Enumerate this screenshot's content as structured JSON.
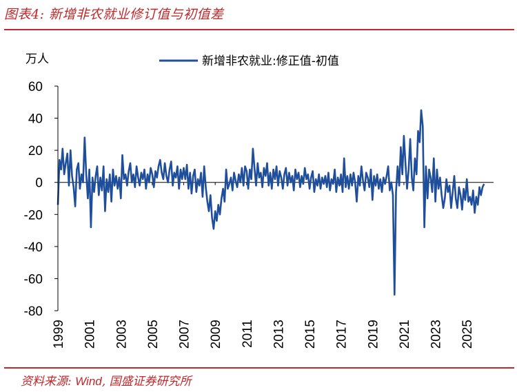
{
  "figure": {
    "title": "图表4: 新增非农就业修订值与初值差",
    "source_prefix": "资料来源: ",
    "source_wind": "Wind",
    "source_suffix": ", 国盛证券研究所"
  },
  "colors": {
    "accent": "#c0282b",
    "series": "#1f4e9a",
    "axis": "#000000"
  },
  "chart_data": {
    "type": "line",
    "title": "",
    "ylabel": "万人",
    "xlabel": "",
    "ylim": [
      -80,
      60
    ],
    "xlim": [
      1999.0,
      2026.7
    ],
    "yticks": [
      60,
      40,
      20,
      0,
      -20,
      -40,
      -60,
      -80
    ],
    "xticks": [
      1999,
      2001,
      2003,
      2005,
      2007,
      2009,
      2011,
      2013,
      2015,
      2017,
      2019,
      2021,
      2023,
      2025
    ],
    "grid": false,
    "legend_position": "top-center",
    "series": [
      {
        "name": "新增非农就业:修正值-初值",
        "points": [
          [
            1999.0,
            -14
          ],
          [
            1999.1,
            14
          ],
          [
            1999.2,
            8
          ],
          [
            1999.3,
            21
          ],
          [
            1999.4,
            5
          ],
          [
            1999.5,
            12
          ],
          [
            1999.6,
            18
          ],
          [
            1999.7,
            -2
          ],
          [
            1999.8,
            20
          ],
          [
            1999.9,
            4
          ],
          [
            2000.0,
            -3
          ],
          [
            2000.1,
            -15
          ],
          [
            2000.2,
            8
          ],
          [
            2000.3,
            12
          ],
          [
            2000.4,
            -4
          ],
          [
            2000.5,
            5
          ],
          [
            2000.6,
            0
          ],
          [
            2000.7,
            28
          ],
          [
            2000.8,
            5
          ],
          [
            2000.9,
            -10
          ],
          [
            2001.0,
            8
          ],
          [
            2001.1,
            -28
          ],
          [
            2001.2,
            3
          ],
          [
            2001.3,
            -6
          ],
          [
            2001.4,
            4
          ],
          [
            2001.5,
            10
          ],
          [
            2001.6,
            -8
          ],
          [
            2001.7,
            3
          ],
          [
            2001.8,
            -5
          ],
          [
            2001.9,
            10
          ],
          [
            2002.0,
            -18
          ],
          [
            2002.1,
            2
          ],
          [
            2002.2,
            -6
          ],
          [
            2002.3,
            5
          ],
          [
            2002.4,
            -12
          ],
          [
            2002.5,
            8
          ],
          [
            2002.6,
            -2
          ],
          [
            2002.7,
            4
          ],
          [
            2002.8,
            -4
          ],
          [
            2002.9,
            3
          ],
          [
            2003.0,
            -10
          ],
          [
            2003.1,
            17
          ],
          [
            2003.2,
            2
          ],
          [
            2003.3,
            5
          ],
          [
            2003.4,
            -2
          ],
          [
            2003.5,
            7
          ],
          [
            2003.6,
            12
          ],
          [
            2003.7,
            0
          ],
          [
            2003.8,
            5
          ],
          [
            2003.9,
            -3
          ],
          [
            2004.0,
            10
          ],
          [
            2004.1,
            3
          ],
          [
            2004.2,
            -2
          ],
          [
            2004.3,
            6
          ],
          [
            2004.4,
            2
          ],
          [
            2004.5,
            8
          ],
          [
            2004.6,
            -4
          ],
          [
            2004.7,
            5
          ],
          [
            2004.8,
            0
          ],
          [
            2004.9,
            9
          ],
          [
            2005.0,
            5
          ],
          [
            2005.1,
            -3
          ],
          [
            2005.2,
            7
          ],
          [
            2005.3,
            3
          ],
          [
            2005.4,
            10
          ],
          [
            2005.5,
            14
          ],
          [
            2005.6,
            6
          ],
          [
            2005.7,
            2
          ],
          [
            2005.8,
            12
          ],
          [
            2005.9,
            4
          ],
          [
            2006.0,
            0
          ],
          [
            2006.1,
            8
          ],
          [
            2006.2,
            13
          ],
          [
            2006.3,
            -2
          ],
          [
            2006.4,
            6
          ],
          [
            2006.5,
            3
          ],
          [
            2006.6,
            10
          ],
          [
            2006.7,
            -4
          ],
          [
            2006.8,
            8
          ],
          [
            2006.9,
            2
          ],
          [
            2007.0,
            9
          ],
          [
            2007.1,
            2
          ],
          [
            2007.2,
            11
          ],
          [
            2007.3,
            -4
          ],
          [
            2007.4,
            6
          ],
          [
            2007.5,
            -7
          ],
          [
            2007.6,
            4
          ],
          [
            2007.7,
            8
          ],
          [
            2007.8,
            -6
          ],
          [
            2007.9,
            2
          ],
          [
            2008.0,
            -2
          ],
          [
            2008.1,
            6
          ],
          [
            2008.2,
            -9
          ],
          [
            2008.3,
            10
          ],
          [
            2008.4,
            -3
          ],
          [
            2008.5,
            -12
          ],
          [
            2008.6,
            -18
          ],
          [
            2008.7,
            -8
          ],
          [
            2008.8,
            -22
          ],
          [
            2008.9,
            -29
          ],
          [
            2009.0,
            -18
          ],
          [
            2009.1,
            -24
          ],
          [
            2009.2,
            -14
          ],
          [
            2009.3,
            -20
          ],
          [
            2009.4,
            -10
          ],
          [
            2009.5,
            -4
          ],
          [
            2009.6,
            -12
          ],
          [
            2009.7,
            8
          ],
          [
            2009.8,
            -4
          ],
          [
            2009.9,
            -1
          ],
          [
            2010.0,
            3
          ],
          [
            2010.1,
            -5
          ],
          [
            2010.2,
            6
          ],
          [
            2010.3,
            1
          ],
          [
            2010.4,
            -3
          ],
          [
            2010.5,
            5
          ],
          [
            2010.6,
            0
          ],
          [
            2010.7,
            9
          ],
          [
            2010.8,
            -2
          ],
          [
            2010.9,
            10
          ],
          [
            2011.0,
            7
          ],
          [
            2011.1,
            -4
          ],
          [
            2011.2,
            8
          ],
          [
            2011.3,
            2
          ],
          [
            2011.4,
            21
          ],
          [
            2011.5,
            9
          ],
          [
            2011.6,
            -2
          ],
          [
            2011.7,
            12
          ],
          [
            2011.8,
            3
          ],
          [
            2011.9,
            6
          ],
          [
            2012.0,
            -3
          ],
          [
            2012.1,
            9
          ],
          [
            2012.2,
            4
          ],
          [
            2012.3,
            12
          ],
          [
            2012.4,
            -2
          ],
          [
            2012.5,
            6
          ],
          [
            2012.6,
            -4
          ],
          [
            2012.7,
            8
          ],
          [
            2012.8,
            2
          ],
          [
            2012.9,
            10
          ],
          [
            2013.0,
            -2
          ],
          [
            2013.1,
            7
          ],
          [
            2013.2,
            3
          ],
          [
            2013.3,
            -4
          ],
          [
            2013.4,
            5
          ],
          [
            2013.5,
            9
          ],
          [
            2013.6,
            -2
          ],
          [
            2013.7,
            6
          ],
          [
            2013.8,
            0
          ],
          [
            2013.9,
            4
          ],
          [
            2014.0,
            -5
          ],
          [
            2014.1,
            8
          ],
          [
            2014.2,
            2
          ],
          [
            2014.3,
            6
          ],
          [
            2014.4,
            -3
          ],
          [
            2014.5,
            4
          ],
          [
            2014.6,
            -1
          ],
          [
            2014.7,
            9
          ],
          [
            2014.8,
            2
          ],
          [
            2014.9,
            5
          ],
          [
            2015.0,
            -4
          ],
          [
            2015.1,
            3
          ],
          [
            2015.2,
            7
          ],
          [
            2015.3,
            -6
          ],
          [
            2015.4,
            2
          ],
          [
            2015.5,
            -2
          ],
          [
            2015.6,
            5
          ],
          [
            2015.7,
            -4
          ],
          [
            2015.8,
            3
          ],
          [
            2015.9,
            -1
          ],
          [
            2016.0,
            4
          ],
          [
            2016.1,
            -3
          ],
          [
            2016.2,
            6
          ],
          [
            2016.3,
            -5
          ],
          [
            2016.4,
            2
          ],
          [
            2016.5,
            -1
          ],
          [
            2016.6,
            8
          ],
          [
            2016.7,
            -6
          ],
          [
            2016.8,
            3
          ],
          [
            2016.9,
            -2
          ],
          [
            2017.0,
            5
          ],
          [
            2017.1,
            -6
          ],
          [
            2017.2,
            15
          ],
          [
            2017.3,
            -3
          ],
          [
            2017.4,
            4
          ],
          [
            2017.5,
            -4
          ],
          [
            2017.6,
            5
          ],
          [
            2017.7,
            -2
          ],
          [
            2017.8,
            6
          ],
          [
            2017.9,
            0
          ],
          [
            2018.0,
            -12
          ],
          [
            2018.1,
            4
          ],
          [
            2018.2,
            -2
          ],
          [
            2018.3,
            10
          ],
          [
            2018.4,
            1
          ],
          [
            2018.5,
            -5
          ],
          [
            2018.6,
            6
          ],
          [
            2018.7,
            3
          ],
          [
            2018.8,
            -3
          ],
          [
            2018.9,
            8
          ],
          [
            2019.0,
            -11
          ],
          [
            2019.1,
            4
          ],
          [
            2019.2,
            -2
          ],
          [
            2019.3,
            5
          ],
          [
            2019.4,
            -4
          ],
          [
            2019.5,
            2
          ],
          [
            2019.6,
            -6
          ],
          [
            2019.7,
            3
          ],
          [
            2019.8,
            -1
          ],
          [
            2019.9,
            4
          ],
          [
            2020.0,
            10
          ],
          [
            2020.1,
            -5
          ],
          [
            2020.2,
            0
          ],
          [
            2020.3,
            -8
          ],
          [
            2020.4,
            -70
          ],
          [
            2020.5,
            -6
          ],
          [
            2020.6,
            10
          ],
          [
            2020.7,
            -2
          ],
          [
            2020.8,
            22
          ],
          [
            2020.9,
            5
          ],
          [
            2021.0,
            29
          ],
          [
            2021.1,
            12
          ],
          [
            2021.2,
            -4
          ],
          [
            2021.3,
            8
          ],
          [
            2021.4,
            27
          ],
          [
            2021.5,
            3
          ],
          [
            2021.6,
            -5
          ],
          [
            2021.7,
            15
          ],
          [
            2021.8,
            5
          ],
          [
            2021.9,
            32
          ],
          [
            2022.0,
            25
          ],
          [
            2022.1,
            45
          ],
          [
            2022.2,
            35
          ],
          [
            2022.3,
            -28
          ],
          [
            2022.4,
            10
          ],
          [
            2022.5,
            -10
          ],
          [
            2022.6,
            8
          ],
          [
            2022.7,
            3
          ],
          [
            2022.8,
            -6
          ],
          [
            2022.9,
            15
          ],
          [
            2023.0,
            -12
          ],
          [
            2023.1,
            8
          ],
          [
            2023.2,
            -4
          ],
          [
            2023.3,
            3
          ],
          [
            2023.4,
            -8
          ],
          [
            2023.5,
            -16
          ],
          [
            2023.6,
            -10
          ],
          [
            2023.7,
            2
          ],
          [
            2023.8,
            -6
          ],
          [
            2023.9,
            -2
          ],
          [
            2024.0,
            -16
          ],
          [
            2024.1,
            -6
          ],
          [
            2024.2,
            4
          ],
          [
            2024.3,
            -10
          ],
          [
            2024.4,
            -16
          ],
          [
            2024.5,
            -3
          ],
          [
            2024.6,
            -8
          ],
          [
            2024.7,
            -17
          ],
          [
            2024.8,
            -4
          ],
          [
            2024.9,
            -11
          ],
          [
            2025.0,
            2
          ],
          [
            2025.1,
            -12
          ],
          [
            2025.2,
            -9
          ],
          [
            2025.3,
            -14
          ],
          [
            2025.4,
            -5
          ],
          [
            2025.5,
            -19
          ],
          [
            2025.6,
            -9
          ],
          [
            2025.7,
            -14
          ],
          [
            2025.8,
            -3
          ],
          [
            2025.9,
            -8
          ],
          [
            2026.0,
            -3
          ],
          [
            2026.1,
            -1
          ]
        ]
      }
    ]
  }
}
